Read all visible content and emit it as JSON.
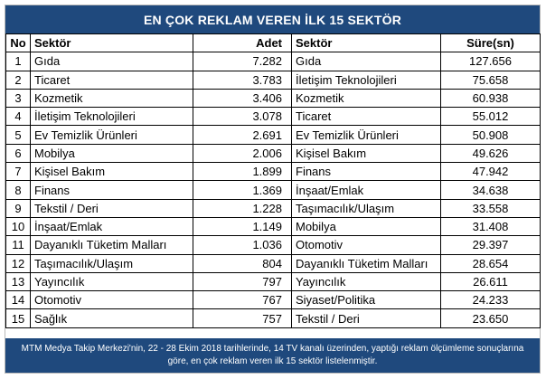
{
  "title": "EN ÇOK REKLAM VEREN İLK 15 SEKTÖR",
  "headers": {
    "no": "No",
    "sector1": "Sektör",
    "count": "Adet",
    "sector2": "Sektör",
    "duration": "Süre(sn)"
  },
  "rows": [
    {
      "no": "1",
      "sector1": "Gıda",
      "count": "7.282",
      "sector2": "Gıda",
      "duration": "127.656"
    },
    {
      "no": "2",
      "sector1": "Ticaret",
      "count": "3.783",
      "sector2": "İletişim Teknolojileri",
      "duration": "75.658"
    },
    {
      "no": "3",
      "sector1": "Kozmetik",
      "count": "3.406",
      "sector2": "Kozmetik",
      "duration": "60.938"
    },
    {
      "no": "4",
      "sector1": "İletişim Teknolojileri",
      "count": "3.078",
      "sector2": "Ticaret",
      "duration": "55.012"
    },
    {
      "no": "5",
      "sector1": "Ev Temizlik Ürünleri",
      "count": "2.691",
      "sector2": "Ev Temizlik Ürünleri",
      "duration": "50.908"
    },
    {
      "no": "6",
      "sector1": "Mobilya",
      "count": "2.006",
      "sector2": "Kişisel Bakım",
      "duration": "49.626"
    },
    {
      "no": "7",
      "sector1": "Kişisel Bakım",
      "count": "1.899",
      "sector2": "Finans",
      "duration": "47.942"
    },
    {
      "no": "8",
      "sector1": "Finans",
      "count": "1.369",
      "sector2": "İnşaat/Emlak",
      "duration": "34.638"
    },
    {
      "no": "9",
      "sector1": "Tekstil / Deri",
      "count": "1.228",
      "sector2": "Taşımacılık/Ulaşım",
      "duration": "33.558"
    },
    {
      "no": "10",
      "sector1": "İnşaat/Emlak",
      "count": "1.149",
      "sector2": "Mobilya",
      "duration": "31.408"
    },
    {
      "no": "11",
      "sector1": "Dayanıklı Tüketim Malları",
      "count": "1.036",
      "sector2": "Otomotiv",
      "duration": "29.397"
    },
    {
      "no": "12",
      "sector1": "Taşımacılık/Ulaşım",
      "count": "804",
      "sector2": "Dayanıklı Tüketim Malları",
      "duration": "28.654"
    },
    {
      "no": "13",
      "sector1": "Yayıncılık",
      "count": "797",
      "sector2": "Yayıncılık",
      "duration": "26.611"
    },
    {
      "no": "14",
      "sector1": "Otomotiv",
      "count": "767",
      "sector2": "Siyaset/Politika",
      "duration": "24.233"
    },
    {
      "no": "15",
      "sector1": "Sağlık",
      "count": "757",
      "sector2": "Tekstil / Deri",
      "duration": "23.650"
    }
  ],
  "footer": "MTM Medya Takip Merkezi'nin, 22 - 28 Ekim 2018 tarihlerinde, 14 TV kanalı üzerinden, yaptığı reklam ölçümleme sonuçlarına göre, en çok reklam veren ilk 15 sektör listelenmiştir.",
  "colors": {
    "header_background": "#1f497d",
    "header_text": "#ffffff"
  }
}
